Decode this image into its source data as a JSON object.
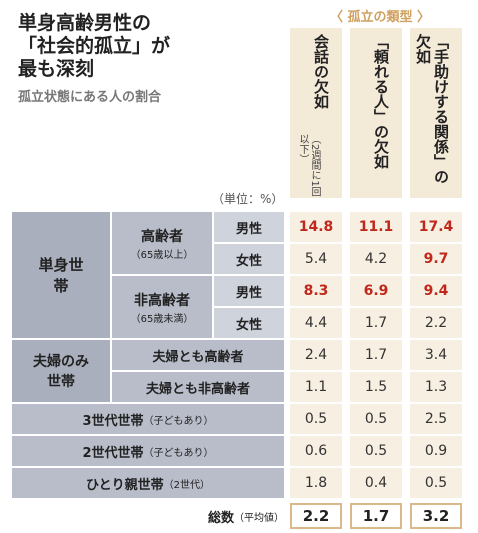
{
  "title": "単身高齢男性の\n「社会的孤立」が\n最も深刻",
  "subtitle": "孤立状態にある人の割合",
  "type_header": "〈 孤立の類型 〉",
  "unit": "（単位：%）",
  "columns": [
    {
      "label": "会話の欠如",
      "note": "（2週間に1回以下）"
    },
    {
      "label": "「頼れる人」の欠如",
      "note": ""
    },
    {
      "label": "「手助けする関係」の欠如",
      "note": ""
    }
  ],
  "group_labels": {
    "single": "単身世帯",
    "couple": "夫婦のみ世帯"
  },
  "sub_labels": {
    "elderly": "高齢者",
    "elderly_note": "（65歳以上）",
    "non_elderly": "非高齢者",
    "non_elderly_note": "（65歳未満）",
    "couple_both_elderly": "夫婦とも高齢者",
    "couple_both_non": "夫婦とも非高齢者",
    "three_gen": "3世代世帯",
    "three_gen_note": "（子どもあり）",
    "two_gen": "2世代世帯",
    "two_gen_note": "（子どもあり）",
    "single_parent": "ひとり親世帯",
    "single_parent_note": "（2世代）"
  },
  "genders": {
    "male": "男性",
    "female": "女性"
  },
  "total_label": "総数",
  "total_note": "（平均値）",
  "chart_data": {
    "type": "table",
    "title": "単身高齢男性の「社会的孤立」が最も深刻",
    "series": [
      {
        "name": "会話の欠如",
        "values": [
          14.8,
          5.4,
          8.3,
          4.4,
          2.4,
          1.1,
          0.5,
          0.6,
          1.8,
          2.2
        ]
      },
      {
        "name": "「頼れる人」の欠如",
        "values": [
          11.1,
          4.2,
          6.9,
          1.7,
          1.7,
          1.5,
          0.5,
          0.5,
          0.4,
          1.7
        ]
      },
      {
        "name": "「手助けする関係」の欠如",
        "values": [
          17.4,
          9.7,
          9.4,
          2.2,
          3.4,
          1.3,
          2.5,
          0.9,
          0.5,
          3.2
        ]
      }
    ],
    "rows": [
      "単身世帯 高齢者 男性",
      "単身世帯 高齢者 女性",
      "単身世帯 非高齢者 男性",
      "単身世帯 非高齢者 女性",
      "夫婦とも高齢者",
      "夫婦とも非高齢者",
      "3世代世帯",
      "2世代世帯",
      "ひとり親世帯",
      "総数"
    ],
    "highlighted": [
      [
        true,
        false,
        true,
        false,
        false,
        false,
        false,
        false,
        false,
        false
      ],
      [
        true,
        false,
        true,
        false,
        false,
        false,
        false,
        false,
        false,
        false
      ],
      [
        true,
        true,
        true,
        false,
        false,
        false,
        false,
        false,
        false,
        false
      ]
    ],
    "highlight_color": "#c0281c"
  }
}
